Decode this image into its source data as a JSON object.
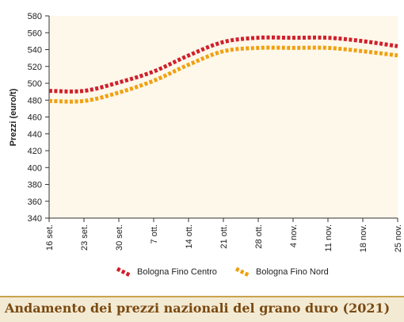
{
  "chart_data": {
    "type": "line",
    "title": "",
    "xlabel": "",
    "ylabel": "Prezzi (euro/t)",
    "categories": [
      "16 set.",
      "23 set.",
      "30 set.",
      "7 ott.",
      "14 ott.",
      "21 ott.",
      "28 ott.",
      "4 nov.",
      "11 nov.",
      "18 nov.",
      "25 nov."
    ],
    "ylim": [
      340,
      580
    ],
    "yticks": [
      340,
      360,
      380,
      400,
      420,
      440,
      460,
      480,
      500,
      520,
      540,
      560,
      580
    ],
    "grid": false,
    "legend_position": "bottom",
    "series": [
      {
        "name": "Bologna Fino Centro",
        "color": "#d0202c",
        "values": [
          491,
          491,
          501,
          514,
          533,
          549,
          554,
          554,
          554,
          550,
          544
        ]
      },
      {
        "name": "Bologna Fino Nord",
        "color": "#f0a010",
        "values": [
          479,
          479,
          489,
          503,
          522,
          538,
          542,
          542,
          542,
          538,
          533
        ]
      }
    ]
  },
  "caption": "Andamento dei prezzi nazionali del grano duro (2021)"
}
